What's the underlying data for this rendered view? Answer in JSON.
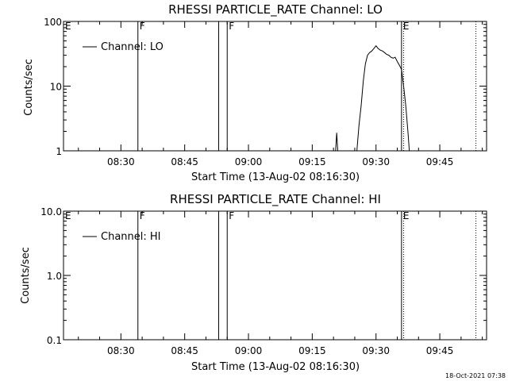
{
  "footer": {
    "timestamp": "18-Oct-2021 07:38"
  },
  "chart_data": [
    {
      "type": "line",
      "title": "RHESSI PARTICLE_RATE Channel: LO",
      "xlabel": "Start Time (13-Aug-02 08:16:30)",
      "ylabel": "Counts/sec",
      "y_scale": "log",
      "ylim": [
        1,
        100
      ],
      "xlim": [
        "08:16:30",
        "09:56:00"
      ],
      "x_tick_labels": [
        "08:30",
        "08:45",
        "09:00",
        "09:15",
        "09:30",
        "09:45"
      ],
      "y_tick_labels": [
        "1",
        "10",
        "100"
      ],
      "legend": {
        "placement": "top-left",
        "entries": [
          "Channel: LO"
        ]
      },
      "flag_lines": [
        {
          "time": "08:34:00",
          "label": "F",
          "style": "solid"
        },
        {
          "time": "08:53:00",
          "label": "",
          "style": "solid"
        },
        {
          "time": "08:55:00",
          "label": "F",
          "style": "solid"
        },
        {
          "time": "09:36:00",
          "label": "E",
          "style": "solid"
        },
        {
          "time": "09:36:30",
          "label": "",
          "style": "dotted"
        },
        {
          "time": "09:53:30",
          "label": "",
          "style": "dotted"
        }
      ],
      "edge_flag": "E",
      "series": [
        {
          "name": "Channel: LO",
          "points": [
            [
              "09:20:30",
              1
            ],
            [
              "09:20:45",
              1.9
            ],
            [
              "09:21:00",
              1
            ],
            [
              "09:25:30",
              1
            ],
            [
              "09:26:00",
              2.5
            ],
            [
              "09:26:30",
              5
            ],
            [
              "09:27:00",
              12
            ],
            [
              "09:27:30",
              22
            ],
            [
              "09:28:00",
              30
            ],
            [
              "09:28:30",
              33
            ],
            [
              "09:29:00",
              35
            ],
            [
              "09:29:30",
              38
            ],
            [
              "09:30:00",
              42
            ],
            [
              "09:30:30",
              38
            ],
            [
              "09:31:00",
              36
            ],
            [
              "09:31:30",
              35
            ],
            [
              "09:32:00",
              33
            ],
            [
              "09:32:30",
              31
            ],
            [
              "09:33:00",
              30
            ],
            [
              "09:33:30",
              28
            ],
            [
              "09:34:00",
              27
            ],
            [
              "09:34:30",
              28
            ],
            [
              "09:35:00",
              24
            ],
            [
              "09:35:30",
              21
            ],
            [
              "09:36:00",
              18
            ],
            [
              "09:36:30",
              10
            ],
            [
              "09:37:00",
              5
            ],
            [
              "09:37:30",
              2
            ],
            [
              "09:37:50",
              1
            ]
          ]
        }
      ]
    },
    {
      "type": "line",
      "title": "RHESSI PARTICLE_RATE Channel: HI",
      "xlabel": "Start Time (13-Aug-02 08:16:30)",
      "ylabel": "Counts/sec",
      "y_scale": "log",
      "ylim": [
        0.1,
        10
      ],
      "xlim": [
        "08:16:30",
        "09:56:00"
      ],
      "x_tick_labels": [
        "08:30",
        "08:45",
        "09:00",
        "09:15",
        "09:30",
        "09:45"
      ],
      "y_tick_labels": [
        "0.1",
        "1.0",
        "10.0"
      ],
      "legend": {
        "placement": "top-left",
        "entries": [
          "Channel: HI"
        ]
      },
      "flag_lines": [
        {
          "time": "08:34:00",
          "label": "F",
          "style": "solid"
        },
        {
          "time": "08:53:00",
          "label": "",
          "style": "solid"
        },
        {
          "time": "08:55:00",
          "label": "F",
          "style": "solid"
        },
        {
          "time": "09:36:00",
          "label": "E",
          "style": "solid"
        },
        {
          "time": "09:36:30",
          "label": "",
          "style": "dotted"
        },
        {
          "time": "09:53:30",
          "label": "",
          "style": "dotted"
        }
      ],
      "edge_flag": "E",
      "series": [
        {
          "name": "Channel: HI",
          "points": []
        }
      ]
    }
  ]
}
